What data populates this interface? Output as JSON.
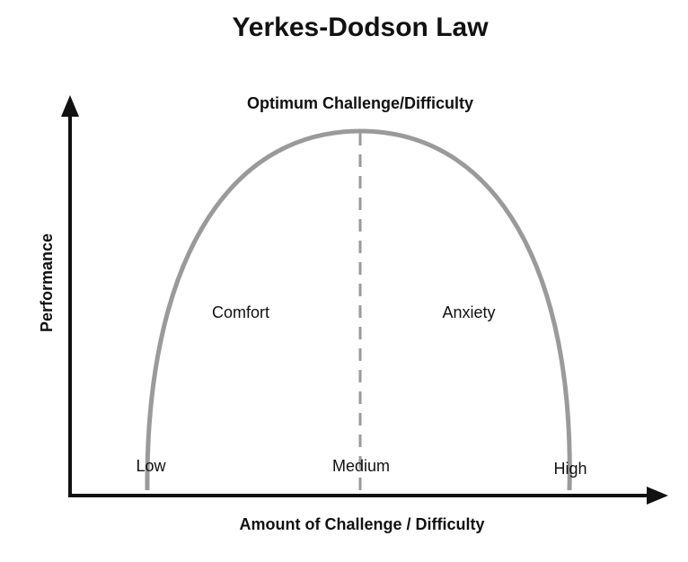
{
  "title": "Yerkes-Dodson Law",
  "peak_label": "Optimum Challenge/Difficulty",
  "y_axis_label": "Performance",
  "x_axis_label": "Amount of Challenge / Difficulty",
  "regions": {
    "left": "Comfort",
    "right": "Anxiety"
  },
  "x_levels": {
    "low": "Low",
    "medium": "Medium",
    "high": "High"
  },
  "colors": {
    "curve": "#9a9a9a",
    "axis": "#111111",
    "divider": "#9a9a9a"
  }
}
